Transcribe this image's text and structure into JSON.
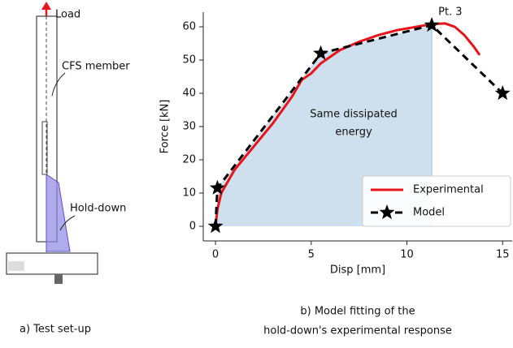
{
  "setup": {
    "labels": {
      "load": "Load",
      "member": "CFS member",
      "holddown": "Hold-down"
    },
    "caption": "a) Test set-up"
  },
  "chart_data": {
    "type": "line",
    "xlabel": "Disp [mm]",
    "ylabel": "Force [kN]",
    "xlim": [
      -0.64,
      15.5
    ],
    "ylim": [
      -4.4,
      64.4
    ],
    "xticks": [
      0,
      5,
      10,
      15
    ],
    "yticks": [
      0,
      10,
      20,
      30,
      40,
      50,
      60
    ],
    "legend": "lower right",
    "series": [
      {
        "name": "Experimental",
        "color": "#e8141a",
        "style": "solid",
        "x": [
          0,
          0.1,
          0.3,
          1,
          2,
          3,
          4,
          4.5,
          5,
          5.5,
          6.5,
          7.5,
          8.5,
          9.5,
          10.5,
          11.3,
          12,
          12.5,
          13,
          13.5,
          13.8
        ],
        "values": [
          0,
          5,
          10,
          17,
          24,
          31,
          39,
          44,
          46,
          49,
          53,
          55.5,
          57.5,
          59,
          60,
          60.8,
          61,
          60,
          57.5,
          54,
          51.5
        ]
      },
      {
        "name": "Model",
        "color": "#000000",
        "style": "dashed",
        "marker": "star",
        "x": [
          0,
          0.1,
          5.5,
          11.3,
          15
        ],
        "values": [
          0,
          11.5,
          52,
          60.5,
          40
        ]
      }
    ],
    "shade": {
      "color": "#c5d9ea",
      "text": [
        "Same dissipated",
        "energy"
      ]
    },
    "annotation": "Pt. 3",
    "caption": [
      "b) Model fitting of the",
      "hold-down's experimental response"
    ]
  }
}
